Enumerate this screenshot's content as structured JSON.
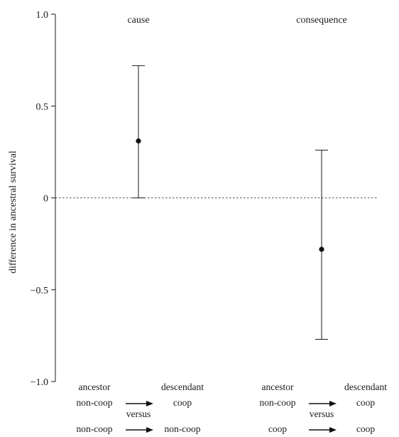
{
  "chart_data": {
    "type": "scatter",
    "title": "",
    "xlabel": "",
    "ylabel": "difference in ancestral survival",
    "ylim": [
      -1.0,
      1.0
    ],
    "yticks": [
      {
        "value": 1.0,
        "label": "1.0"
      },
      {
        "value": 0.5,
        "label": "0.5"
      },
      {
        "value": 0,
        "label": "0"
      },
      {
        "value": -0.5,
        "label": "−0.5"
      },
      {
        "value": -1.0,
        "label": "−1.0"
      }
    ],
    "reference_line": {
      "value": 0,
      "style": "dotted"
    },
    "grid": false,
    "legend": "none",
    "colors": {
      "ink": "#1a1a1a",
      "point": "#111111",
      "reference": "#555555"
    },
    "panels": [
      {
        "title": "cause",
        "estimate": 0.31,
        "lower": 0.0,
        "upper": 0.72,
        "labels": {
          "ancestor_header": "ancestor",
          "descendant_header": "descendant",
          "versus": "versus",
          "row1_ancestor": "non-coop",
          "row1_descendant": "coop",
          "row2_ancestor": "non-coop",
          "row2_descendant": "non-coop"
        }
      },
      {
        "title": "consequence",
        "estimate": -0.28,
        "lower": -0.77,
        "upper": 0.26,
        "labels": {
          "ancestor_header": "ancestor",
          "descendant_header": "descendant",
          "versus": "versus",
          "row1_ancestor": "non-coop",
          "row1_descendant": "coop",
          "row2_ancestor": "coop",
          "row2_descendant": "coop"
        }
      }
    ]
  }
}
